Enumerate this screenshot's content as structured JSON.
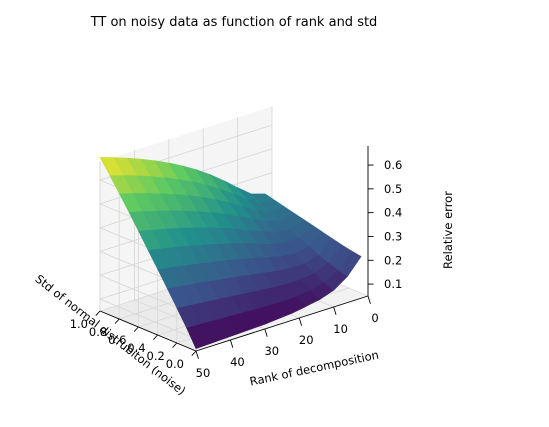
{
  "chart_data": {
    "type": "surface",
    "title": "TT on noisy data as function of rank and std",
    "xlabel": "Rank of decomposition",
    "ylabel": "Std of normal distrubiton (noise)",
    "zlabel": "Relative error",
    "xlim": [
      0,
      50
    ],
    "ylim": [
      0,
      1
    ],
    "zlim": [
      0.05,
      0.68
    ],
    "x_ticks": [
      "0",
      "10",
      "20",
      "30",
      "40",
      "50"
    ],
    "y_ticks": [
      "0.0",
      "0.2",
      "0.4",
      "0.6",
      "0.8",
      "1.0"
    ],
    "z_ticks": [
      "0.1",
      "0.2",
      "0.3",
      "0.4",
      "0.5",
      "0.6"
    ],
    "colormap": "viridis",
    "colormap_stops": [
      "#440154",
      "#3b528b",
      "#21918c",
      "#5ec962",
      "#fde725"
    ],
    "rank_values": [
      2,
      6,
      10,
      14,
      18,
      22,
      26,
      30,
      34,
      38,
      42,
      46,
      50
    ],
    "std_values": [
      0.0,
      0.1,
      0.2,
      0.3,
      0.4,
      0.5,
      0.6,
      0.7,
      0.8,
      0.9,
      1.0
    ],
    "relative_error": [
      [
        0.225,
        0.16,
        0.12,
        0.1,
        0.09,
        0.08,
        0.075,
        0.07,
        0.068,
        0.066,
        0.064,
        0.062,
        0.06
      ],
      [
        0.232,
        0.172,
        0.138,
        0.122,
        0.116,
        0.114,
        0.115,
        0.117,
        0.12,
        0.123,
        0.126,
        0.129,
        0.132
      ],
      [
        0.24,
        0.186,
        0.16,
        0.152,
        0.152,
        0.156,
        0.162,
        0.168,
        0.174,
        0.18,
        0.186,
        0.192,
        0.198
      ],
      [
        0.25,
        0.202,
        0.184,
        0.183,
        0.19,
        0.2,
        0.21,
        0.22,
        0.229,
        0.238,
        0.247,
        0.255,
        0.263
      ],
      [
        0.26,
        0.22,
        0.21,
        0.216,
        0.23,
        0.245,
        0.259,
        0.272,
        0.284,
        0.296,
        0.307,
        0.317,
        0.327
      ],
      [
        0.27,
        0.238,
        0.238,
        0.25,
        0.27,
        0.29,
        0.308,
        0.324,
        0.34,
        0.354,
        0.367,
        0.379,
        0.39
      ],
      [
        0.28,
        0.258,
        0.266,
        0.286,
        0.31,
        0.335,
        0.357,
        0.377,
        0.395,
        0.412,
        0.427,
        0.441,
        0.454
      ],
      [
        0.29,
        0.278,
        0.295,
        0.322,
        0.352,
        0.38,
        0.405,
        0.428,
        0.449,
        0.468,
        0.486,
        0.502,
        0.517
      ],
      [
        0.3,
        0.298,
        0.324,
        0.358,
        0.393,
        0.425,
        0.453,
        0.479,
        0.502,
        0.523,
        0.543,
        0.561,
        0.578
      ],
      [
        0.31,
        0.318,
        0.354,
        0.395,
        0.434,
        0.47,
        0.501,
        0.529,
        0.555,
        0.578,
        0.6,
        0.62,
        0.638
      ],
      [
        0.32,
        0.338,
        0.383,
        0.431,
        0.475,
        0.514,
        0.548,
        0.579,
        0.607,
        0.632,
        0.655,
        0.676,
        0.695
      ]
    ]
  }
}
